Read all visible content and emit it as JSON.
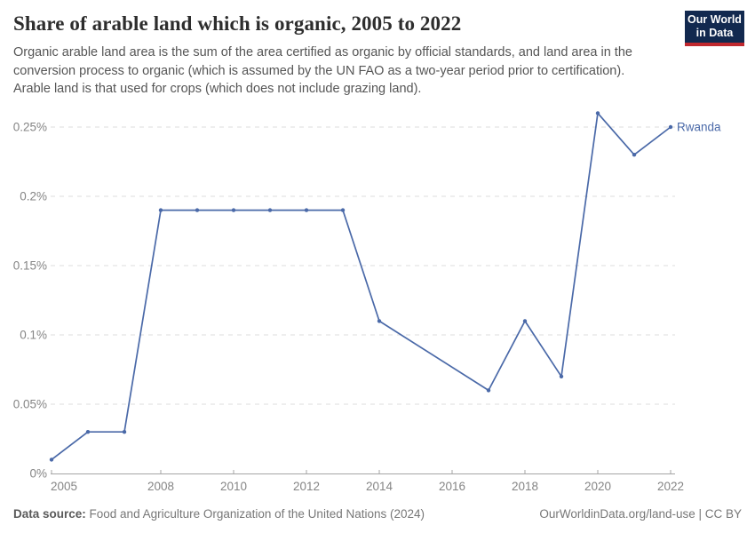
{
  "header": {
    "title": "Share of arable land which is organic, 2005 to 2022",
    "subtitle": "Organic arable land area is the sum of the area certified as organic by official standards, and land area in the conversion process to organic (which is assumed by the UN FAO as a two-year period prior to certification). Arable land is that used for crops (which does not include grazing land).",
    "logo": {
      "line1": "Our World",
      "line2": "in Data"
    }
  },
  "colors": {
    "series_line": "#4a69a8",
    "axis_label": "#858585",
    "grid_line": "#dcdcdc",
    "axis_line": "#a5a5a5",
    "logo_bg": "#12294f",
    "logo_bar": "#c0282e"
  },
  "chart_data": {
    "type": "line",
    "title": "Share of arable land which is organic, 2005 to 2022",
    "xlabel": "",
    "ylabel": "",
    "xlim": [
      2005,
      2022
    ],
    "ylim": [
      0,
      0.25
    ],
    "grid": "horizontal-dashed",
    "legend_position": "end-of-line-label",
    "x_ticks": [
      2005,
      2008,
      2010,
      2012,
      2014,
      2016,
      2018,
      2020,
      2022
    ],
    "y_ticks": [
      {
        "value": 0,
        "label": "0%"
      },
      {
        "value": 0.05,
        "label": "0.05%"
      },
      {
        "value": 0.1,
        "label": "0.1%"
      },
      {
        "value": 0.15,
        "label": "0.15%"
      },
      {
        "value": 0.2,
        "label": "0.2%"
      },
      {
        "value": 0.25,
        "label": "0.25%"
      }
    ],
    "series": [
      {
        "name": "Rwanda",
        "unit": "%",
        "points": [
          [
            2005,
            0.01
          ],
          [
            2006,
            0.03
          ],
          [
            2007,
            0.03
          ],
          [
            2008,
            0.19
          ],
          [
            2009,
            0.19
          ],
          [
            2010,
            0.19
          ],
          [
            2011,
            0.19
          ],
          [
            2012,
            0.19
          ],
          [
            2013,
            0.19
          ],
          [
            2014,
            0.11
          ],
          [
            2017,
            0.06
          ],
          [
            2018,
            0.11
          ],
          [
            2019,
            0.07
          ],
          [
            2020,
            0.26
          ],
          [
            2021,
            0.23
          ],
          [
            2022,
            0.25
          ]
        ]
      }
    ]
  },
  "footer": {
    "source_label": "Data source:",
    "source_text": " Food and Agriculture Organization of the United Nations (2024)",
    "right_text": "OurWorldinData.org/land-use | CC BY"
  }
}
